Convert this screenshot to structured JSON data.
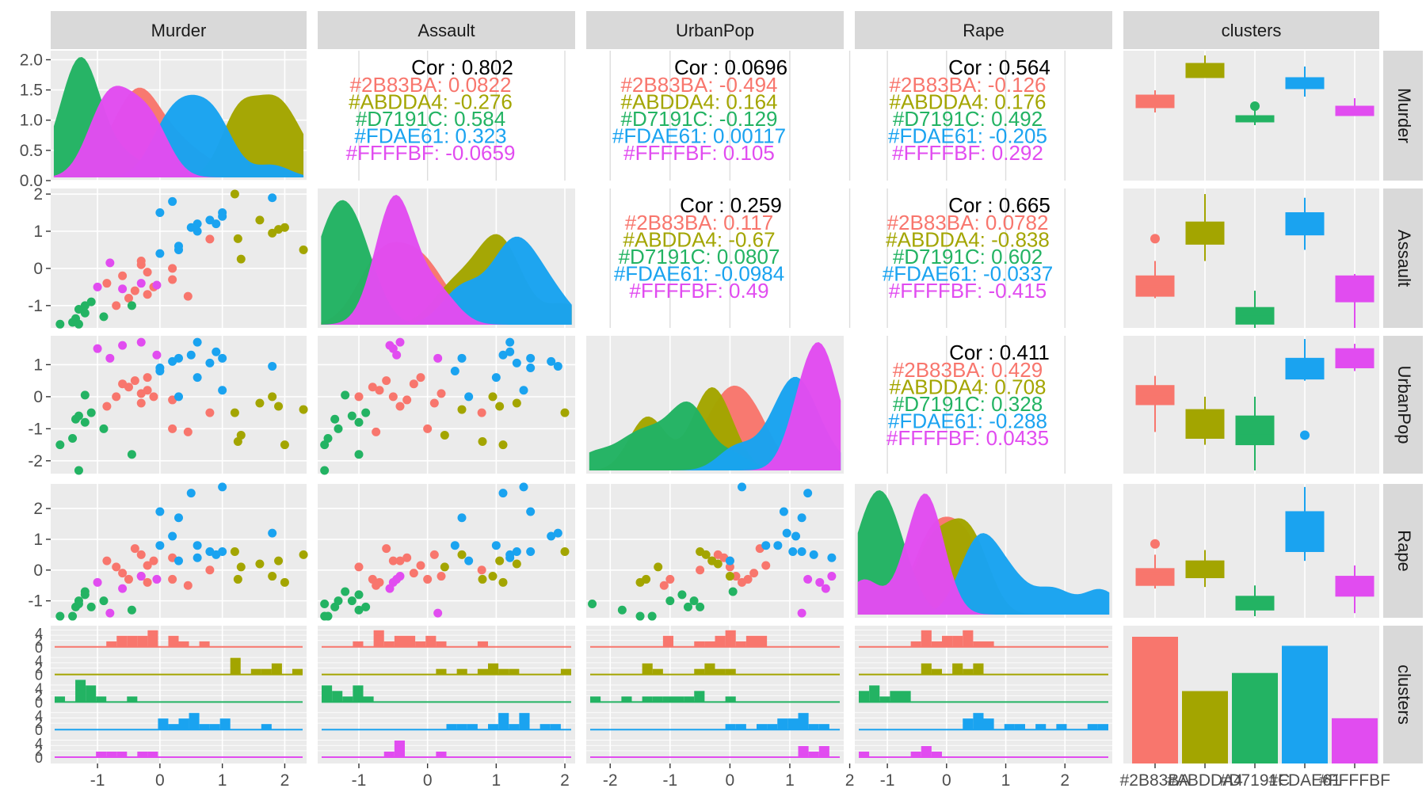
{
  "chart_data": {
    "type": "scatter",
    "kind": "pairs-plot",
    "title": "",
    "variables": [
      "Murder",
      "Assault",
      "UrbanPop",
      "Rape"
    ],
    "facet_labels": [
      "Murder",
      "Assault",
      "UrbanPop",
      "Rape",
      "clusters"
    ],
    "clusters": [
      {
        "id": "#2B83BA",
        "color": "#F8766D"
      },
      {
        "id": "#ABDDA4",
        "color": "#A3A500"
      },
      {
        "id": "#D7191C",
        "color": "#23B363"
      },
      {
        "id": "#FDAE61",
        "color": "#1AA3F0"
      },
      {
        "id": "#FFFFBF",
        "color": "#E14CF0"
      }
    ],
    "axis_ranges": {
      "Murder": [
        -1.75,
        2.35
      ],
      "Assault": [
        -1.6,
        2.15
      ],
      "UrbanPop": [
        -2.4,
        1.9
      ],
      "Rape": [
        -1.55,
        2.8
      ]
    },
    "x_ticks": {
      "Murder": [
        "-1",
        "0",
        "1",
        "2"
      ],
      "Assault": [
        "-1",
        "0",
        "1",
        "2"
      ],
      "UrbanPop": [
        "-2",
        "-1",
        "0",
        "1",
        "2"
      ],
      "Rape": [
        "-1",
        "0",
        "1",
        "2"
      ]
    },
    "y_ticks": {
      "Murder_density": [
        "0.0",
        "0.5",
        "1.0",
        "1.5",
        "2.0"
      ],
      "Assault": [
        "-1",
        "0",
        "1",
        "2"
      ],
      "UrbanPop": [
        "-2",
        "-1",
        "0",
        "1"
      ],
      "Rape": [
        "-1",
        "0",
        "1",
        "2"
      ],
      "clusters_hist": [
        "0",
        "2",
        "4"
      ]
    },
    "correlations": [
      {
        "pair": [
          "Murder",
          "Assault"
        ],
        "overall": "Cor : 0.802",
        "lines": [
          "#2B83BA: 0.0822",
          "#ABDDA4: -0.276",
          "#D7191C: 0.584",
          "#FDAE61: 0.323",
          "#FFFFBF: -0.0659"
        ]
      },
      {
        "pair": [
          "Murder",
          "UrbanPop"
        ],
        "overall": "Cor : 0.0696",
        "lines": [
          "#2B83BA: -0.494",
          "#ABDDA4: 0.164",
          "#D7191C: -0.129",
          "#FDAE61: 0.00117",
          "#FFFFBF: 0.105"
        ]
      },
      {
        "pair": [
          "Murder",
          "Rape"
        ],
        "overall": "Cor : 0.564",
        "lines": [
          "#2B83BA: -0.126",
          "#ABDDA4: 0.176",
          "#D7191C: 0.492",
          "#FDAE61: -0.205",
          "#FFFFBF: 0.292"
        ]
      },
      {
        "pair": [
          "Assault",
          "UrbanPop"
        ],
        "overall": "Cor : 0.259",
        "lines": [
          "#2B83BA: 0.117",
          "#ABDDA4: -0.67",
          "#D7191C: 0.0807",
          "#FDAE61: -0.0984",
          "#FFFFBF: 0.49"
        ]
      },
      {
        "pair": [
          "Assault",
          "Rape"
        ],
        "overall": "Cor : 0.665",
        "lines": [
          "#2B83BA: 0.0782",
          "#ABDDA4: -0.838",
          "#D7191C: 0.602",
          "#FDAE61: -0.0337",
          "#FFFFBF: -0.415"
        ]
      },
      {
        "pair": [
          "UrbanPop",
          "Rape"
        ],
        "overall": "Cor : 0.411",
        "lines": [
          "#2B83BA: 0.429",
          "#ABDDA4: 0.708",
          "#D7191C: 0.328",
          "#FDAE61: -0.288",
          "#FFFFBF: 0.0435"
        ]
      }
    ],
    "points": [
      {
        "cluster": 0,
        "Murder": 0.8,
        "Assault": 0.79,
        "UrbanPop": -0.5,
        "Rape": -0.0
      },
      {
        "cluster": 0,
        "Murder": -0.3,
        "Assault": 0.2,
        "UrbanPop": 0.1,
        "Rape": -0.2
      },
      {
        "cluster": 0,
        "Murder": -0.2,
        "Assault": -0.1,
        "UrbanPop": 0.6,
        "Rape": 0.15
      },
      {
        "cluster": 0,
        "Murder": -0.1,
        "Assault": -0.5,
        "UrbanPop": 0.0,
        "Rape": 0.3
      },
      {
        "cluster": 0,
        "Murder": 0.2,
        "Assault": -0.3,
        "UrbanPop": -0.1,
        "Rape": 0.4
      },
      {
        "cluster": 0,
        "Murder": -0.5,
        "Assault": -0.8,
        "UrbanPop": 0.3,
        "Rape": -0.3
      },
      {
        "cluster": 0,
        "Murder": 0.45,
        "Assault": -0.75,
        "UrbanPop": -1.1,
        "Rape": -0.5
      },
      {
        "cluster": 0,
        "Murder": -0.85,
        "Assault": -0.4,
        "UrbanPop": -0.3,
        "Rape": 0.3
      },
      {
        "cluster": 0,
        "Murder": -0.6,
        "Assault": -0.2,
        "UrbanPop": 0.4,
        "Rape": -0.1
      },
      {
        "cluster": 0,
        "Murder": -0.4,
        "Assault": -0.6,
        "UrbanPop": 0.5,
        "Rape": 0.7
      },
      {
        "cluster": 0,
        "Murder": 0.2,
        "Assault": 0.0,
        "UrbanPop": -1.0,
        "Rape": -0.3
      },
      {
        "cluster": 0,
        "Murder": -0.3,
        "Assault": 0.1,
        "UrbanPop": -0.2,
        "Rape": 0.5
      },
      {
        "cluster": 0,
        "Murder": -0.7,
        "Assault": -1.0,
        "UrbanPop": 0.0,
        "Rape": 0.1
      },
      {
        "cluster": 0,
        "Murder": -0.2,
        "Assault": -0.7,
        "UrbanPop": 0.2,
        "Rape": -0.4
      },
      {
        "cluster": 1,
        "Murder": 1.2,
        "Assault": 2.0,
        "UrbanPop": -0.5,
        "Rape": 0.6
      },
      {
        "cluster": 1,
        "Murder": 2.3,
        "Assault": 0.5,
        "UrbanPop": -0.4,
        "Rape": 0.5
      },
      {
        "cluster": 1,
        "Murder": 2.0,
        "Assault": 1.1,
        "UrbanPop": -1.5,
        "Rape": -0.4
      },
      {
        "cluster": 1,
        "Murder": 1.25,
        "Assault": 0.8,
        "UrbanPop": -1.4,
        "Rape": -0.3
      },
      {
        "cluster": 1,
        "Murder": 1.6,
        "Assault": 1.3,
        "UrbanPop": -0.2,
        "Rape": 0.2
      },
      {
        "cluster": 1,
        "Murder": 1.3,
        "Assault": 0.25,
        "UrbanPop": -1.2,
        "Rape": 0.1
      },
      {
        "cluster": 1,
        "Murder": 1.8,
        "Assault": 0.95,
        "UrbanPop": 0.0,
        "Rape": -0.2
      },
      {
        "cluster": 1,
        "Murder": 1.9,
        "Assault": 1.05,
        "UrbanPop": -0.3,
        "Rape": 0.3
      },
      {
        "cluster": 2,
        "Murder": -1.6,
        "Assault": -1.5,
        "UrbanPop": -1.5,
        "Rape": -1.5
      },
      {
        "cluster": 2,
        "Murder": -1.35,
        "Assault": -1.35,
        "UrbanPop": -0.7,
        "Rape": -1.2
      },
      {
        "cluster": 2,
        "Murder": -1.2,
        "Assault": -1.2,
        "UrbanPop": 0.05,
        "Rape": -0.7
      },
      {
        "cluster": 2,
        "Murder": -0.45,
        "Assault": -1.0,
        "UrbanPop": -1.8,
        "Rape": -1.3
      },
      {
        "cluster": 2,
        "Murder": -1.3,
        "Assault": -1.5,
        "UrbanPop": -2.3,
        "Rape": -1.1
      },
      {
        "cluster": 2,
        "Murder": -1.3,
        "Assault": -1.1,
        "UrbanPop": -0.6,
        "Rape": -1.0
      },
      {
        "cluster": 2,
        "Murder": -1.2,
        "Assault": -1.0,
        "UrbanPop": -0.8,
        "Rape": -0.8
      },
      {
        "cluster": 2,
        "Murder": -0.9,
        "Assault": -1.3,
        "UrbanPop": -1.0,
        "Rape": -1.0
      },
      {
        "cluster": 2,
        "Murder": -1.4,
        "Assault": -1.45,
        "UrbanPop": -1.3,
        "Rape": -1.5
      },
      {
        "cluster": 2,
        "Murder": -1.1,
        "Assault": -0.9,
        "UrbanPop": -0.5,
        "Rape": -1.2
      },
      {
        "cluster": 3,
        "Murder": 0.0,
        "Assault": 1.5,
        "UrbanPop": 0.9,
        "Rape": 1.9
      },
      {
        "cluster": 3,
        "Murder": 0.5,
        "Assault": 1.1,
        "UrbanPop": 1.3,
        "Rape": 2.5
      },
      {
        "cluster": 3,
        "Murder": 1.0,
        "Assault": 1.4,
        "UrbanPop": 0.2,
        "Rape": 2.7
      },
      {
        "cluster": 3,
        "Murder": 0.2,
        "Assault": 1.8,
        "UrbanPop": 1.1,
        "Rape": 1.1
      },
      {
        "cluster": 3,
        "Murder": 1.8,
        "Assault": 1.9,
        "UrbanPop": 0.95,
        "Rape": 1.2
      },
      {
        "cluster": 3,
        "Murder": 0.8,
        "Assault": 1.3,
        "UrbanPop": 1.05,
        "Rape": 0.6
      },
      {
        "cluster": 3,
        "Murder": 0.6,
        "Assault": 1.0,
        "UrbanPop": 0.6,
        "Rape": 0.8
      },
      {
        "cluster": 3,
        "Murder": 0.9,
        "Assault": 1.2,
        "UrbanPop": 1.4,
        "Rape": 0.5
      },
      {
        "cluster": 3,
        "Murder": 0.3,
        "Assault": 0.5,
        "UrbanPop": 1.2,
        "Rape": 1.7
      },
      {
        "cluster": 3,
        "Murder": 0.0,
        "Assault": 0.4,
        "UrbanPop": 0.8,
        "Rape": 0.8
      },
      {
        "cluster": 3,
        "Murder": 0.3,
        "Assault": 0.6,
        "UrbanPop": 0.0,
        "Rape": 0.3
      },
      {
        "cluster": 3,
        "Murder": 0.6,
        "Assault": 1.2,
        "UrbanPop": 1.7,
        "Rape": 0.4
      },
      {
        "cluster": 3,
        "Murder": 1.0,
        "Assault": 1.5,
        "UrbanPop": 1.2,
        "Rape": 0.6
      },
      {
        "cluster": 4,
        "Murder": -1.0,
        "Assault": -0.5,
        "UrbanPop": 1.5,
        "Rape": -0.4
      },
      {
        "cluster": 4,
        "Murder": -0.6,
        "Assault": -0.55,
        "UrbanPop": 1.6,
        "Rape": -0.6
      },
      {
        "cluster": 4,
        "Murder": -0.3,
        "Assault": -0.4,
        "UrbanPop": 1.7,
        "Rape": -0.2
      },
      {
        "cluster": 4,
        "Murder": -0.05,
        "Assault": -0.45,
        "UrbanPop": 1.3,
        "Rape": -0.3
      },
      {
        "cluster": 4,
        "Murder": -0.8,
        "Assault": 0.15,
        "UrbanPop": 1.2,
        "Rape": -1.4
      }
    ],
    "cluster_counts": [
      14,
      8,
      10,
      13,
      5
    ],
    "box_stats": {
      "Murder": [
        {
          "lo": 0.4,
          "q1": 0.55,
          "med": 0.8,
          "q3": 0.95,
          "hi": 1.1,
          "out": []
        },
        {
          "lo": 1.5,
          "q1": 1.5,
          "med": 1.8,
          "q3": 1.95,
          "hi": 2.2,
          "out": []
        },
        {
          "lo": 0.0,
          "q1": 0.1,
          "med": 0.2,
          "q3": 0.3,
          "hi": 0.45,
          "out": [
            0.6
          ]
        },
        {
          "lo": 0.9,
          "q1": 1.15,
          "med": 1.3,
          "q3": 1.5,
          "hi": 1.85,
          "out": []
        },
        {
          "lo": 0.3,
          "q1": 0.3,
          "med": 0.45,
          "q3": 0.6,
          "hi": 0.85,
          "out": []
        }
      ],
      "Assault": [
        {
          "lo": -0.8,
          "q1": -0.75,
          "med": -0.5,
          "q3": -0.2,
          "hi": 0.2,
          "out": [
            0.8
          ]
        },
        {
          "lo": 0.2,
          "q1": 0.65,
          "med": 0.95,
          "q3": 1.25,
          "hi": 2.0,
          "out": []
        },
        {
          "lo": -1.6,
          "q1": -1.5,
          "med": -1.3,
          "q3": -1.05,
          "hi": -0.6,
          "out": []
        },
        {
          "lo": 0.5,
          "q1": 0.9,
          "med": 1.15,
          "q3": 1.5,
          "hi": 1.9,
          "out": []
        },
        {
          "lo": -1.6,
          "q1": -0.9,
          "med": -0.5,
          "q3": -0.2,
          "hi": -0.15,
          "out": []
        }
      ],
      "UrbanPop": [
        {
          "lo": -1.1,
          "q1": -0.25,
          "med": 0.0,
          "q3": 0.35,
          "hi": 0.65,
          "out": []
        },
        {
          "lo": -1.5,
          "q1": -1.3,
          "med": -0.8,
          "q3": -0.4,
          "hi": 0.0,
          "out": []
        },
        {
          "lo": -2.3,
          "q1": -1.5,
          "med": -1.15,
          "q3": -0.6,
          "hi": 0.0,
          "out": []
        },
        {
          "lo": 0.5,
          "q1": 0.55,
          "med": 0.95,
          "q3": 1.2,
          "hi": 1.8,
          "out": [
            -1.2
          ]
        },
        {
          "lo": 0.8,
          "q1": 0.9,
          "med": 1.35,
          "q3": 1.5,
          "hi": 1.65,
          "out": []
        }
      ],
      "Rape": [
        {
          "lo": -0.6,
          "q1": -0.5,
          "med": -0.1,
          "q3": 0.05,
          "hi": 0.5,
          "out": [
            0.85
          ]
        },
        {
          "lo": -0.55,
          "q1": -0.25,
          "med": 0.0,
          "q3": 0.3,
          "hi": 0.65,
          "out": []
        },
        {
          "lo": -1.5,
          "q1": -1.3,
          "med": -1.1,
          "q3": -0.85,
          "hi": -0.5,
          "out": []
        },
        {
          "lo": 0.3,
          "q1": 0.6,
          "med": 1.1,
          "q3": 1.9,
          "hi": 2.7,
          "out": []
        },
        {
          "lo": -1.4,
          "q1": -0.85,
          "med": -0.55,
          "q3": -0.2,
          "hi": 0.15,
          "out": []
        }
      ]
    },
    "grid": true,
    "legend": "none"
  }
}
